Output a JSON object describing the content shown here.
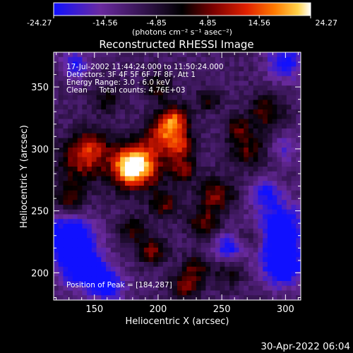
{
  "chart_data": {
    "type": "heatmap",
    "title": "Reconstructed RHESSI Image",
    "xlabel": "Heliocentric X (arcsec)",
    "ylabel": "Heliocentric Y (arcsec)",
    "xlim": [
      118,
      312
    ],
    "ylim": [
      178,
      378
    ],
    "xticks": [
      150,
      200,
      250,
      300
    ],
    "yticks": [
      200,
      250,
      300,
      350
    ],
    "colorbar": {
      "ticks": [
        "-24.27",
        "-14.56",
        "-4.85",
        "4.85",
        "14.56",
        "24.27"
      ],
      "range": [
        -24.27,
        24.27
      ],
      "unit_label": "(photons cm⁻² s⁻¹ asec⁻²)",
      "colors": [
        "#1010ff",
        "#6a2aa0",
        "#2a1040",
        "#000000",
        "#7a0000",
        "#e02000",
        "#ff7a00",
        "#ffd24a",
        "#ffffff"
      ]
    },
    "annotations": [
      "17-Jul-2002 11:44:24.000 to 11:50:24.000",
      "Detectors: 3F 4F 5F 6F 7F 8F, Att 1",
      "Energy Range: 3.0 - 6.0 keV",
      "Clean     Total counts: 4.76E+03"
    ],
    "peak_label": "Position of Peak = [184,287]",
    "peak": [
      184,
      287
    ],
    "grid": false
  },
  "footer": {
    "timestamp": "30-Apr-2022 06:04"
  }
}
